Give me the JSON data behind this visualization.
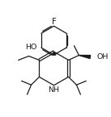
{
  "background": "#ffffff",
  "line_color": "#1a1a1a",
  "line_width": 0.9,
  "font_size": 6.8,
  "fig_width": 1.37,
  "fig_height": 1.45,
  "dpi": 100,
  "xlim": [
    0,
    137
  ],
  "ylim": [
    0,
    145
  ]
}
